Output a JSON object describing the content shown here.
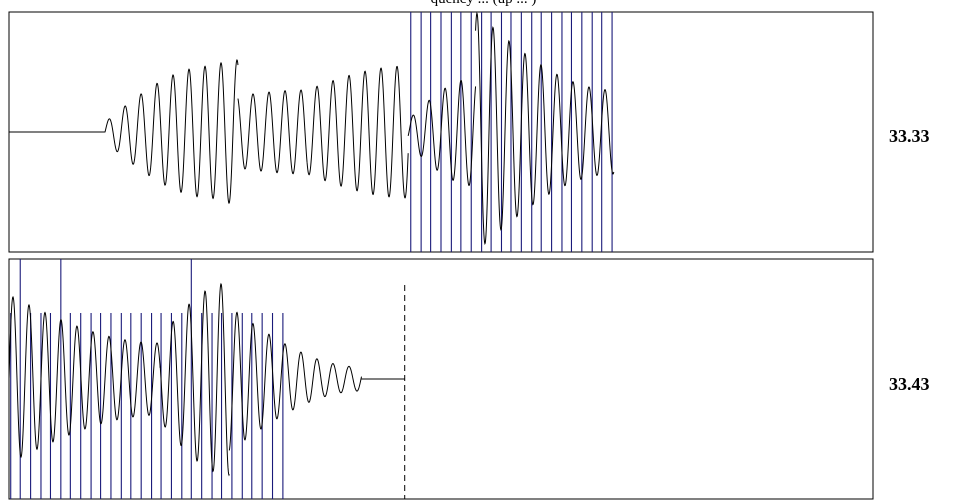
{
  "caption": "quency ... (up ... )",
  "colors": {
    "waveform": "#000000",
    "spikes": "#1a1a7a",
    "frame": "#000000",
    "marker": "#000000"
  },
  "chart_data": [
    {
      "type": "line",
      "title": "",
      "panel_time_label": "33.33",
      "x_range": [
        33.33,
        33.43
      ],
      "y_range": [
        -1.0,
        1.0
      ],
      "series": [
        {
          "kind": "waveform",
          "segments": [
            {
              "t0": 33.33,
              "t1": 33.3411,
              "amp0": 0.0,
              "amp1": 0.0
            },
            {
              "t0": 33.3411,
              "t1": 33.3535,
              "amp0": 0.08,
              "amp1": 0.55
            },
            {
              "t0": 33.3535,
              "t1": 33.3565,
              "amp0": 0.55,
              "amp1": 0.6
            },
            {
              "t0": 33.3565,
              "t1": 33.3645,
              "amp0": 0.3,
              "amp1": 0.35
            },
            {
              "t0": 33.3645,
              "t1": 33.3762,
              "amp0": 0.35,
              "amp1": 0.55
            },
            {
              "t0": 33.3762,
              "t1": 33.384,
              "amp0": 0.1,
              "amp1": 0.45
            },
            {
              "t0": 33.384,
              "t1": 33.4,
              "amp0": 1.0,
              "amp1": 0.35
            }
          ],
          "cycles_per_unit": 540
        },
        {
          "kind": "spikes",
          "y_top": 1.0,
          "times": [
            33.3765,
            33.3777,
            33.3788,
            33.38,
            33.3812,
            33.3823,
            33.3835,
            33.3847,
            33.3858,
            33.387,
            33.3881,
            33.3893,
            33.3905,
            33.3916,
            33.3928,
            33.394,
            33.3951,
            33.3963,
            33.3975,
            33.3986,
            33.3998
          ],
          "tall_times": [
            33.3765,
            33.3823,
            33.3881,
            33.3951
          ]
        }
      ]
    },
    {
      "type": "line",
      "title": "",
      "panel_time_label": "33.43",
      "x_range": [
        33.43,
        33.53
      ],
      "y_range": [
        -1.0,
        1.0
      ],
      "marker_time": 33.4758,
      "series": [
        {
          "kind": "waveform",
          "segments": [
            {
              "t0": 33.43,
              "t1": 33.4475,
              "amp0": 0.7,
              "amp1": 0.3
            },
            {
              "t0": 33.4475,
              "t1": 33.4555,
              "amp0": 0.35,
              "amp1": 0.8
            },
            {
              "t0": 33.4555,
              "t1": 33.4708,
              "amp0": 0.6,
              "amp1": 0.1
            },
            {
              "t0": 33.4708,
              "t1": 33.4758,
              "amp0": 0.0,
              "amp1": 0.0
            }
          ],
          "cycles_per_unit": 540
        },
        {
          "kind": "spikes",
          "y_top": 0.55,
          "times": [
            33.4302,
            33.4313,
            33.4325,
            33.4337,
            33.4348,
            33.436,
            33.4371,
            33.4383,
            33.4395,
            33.4406,
            33.4418,
            33.443,
            33.4441,
            33.4453,
            33.4465,
            33.4476,
            33.4488,
            33.45,
            33.4511,
            33.4523,
            33.4535,
            33.4546,
            33.4558,
            33.457,
            33.4581,
            33.4593,
            33.4605,
            33.4617
          ],
          "tall_times": [
            33.4313,
            33.436,
            33.4511
          ]
        }
      ]
    }
  ]
}
